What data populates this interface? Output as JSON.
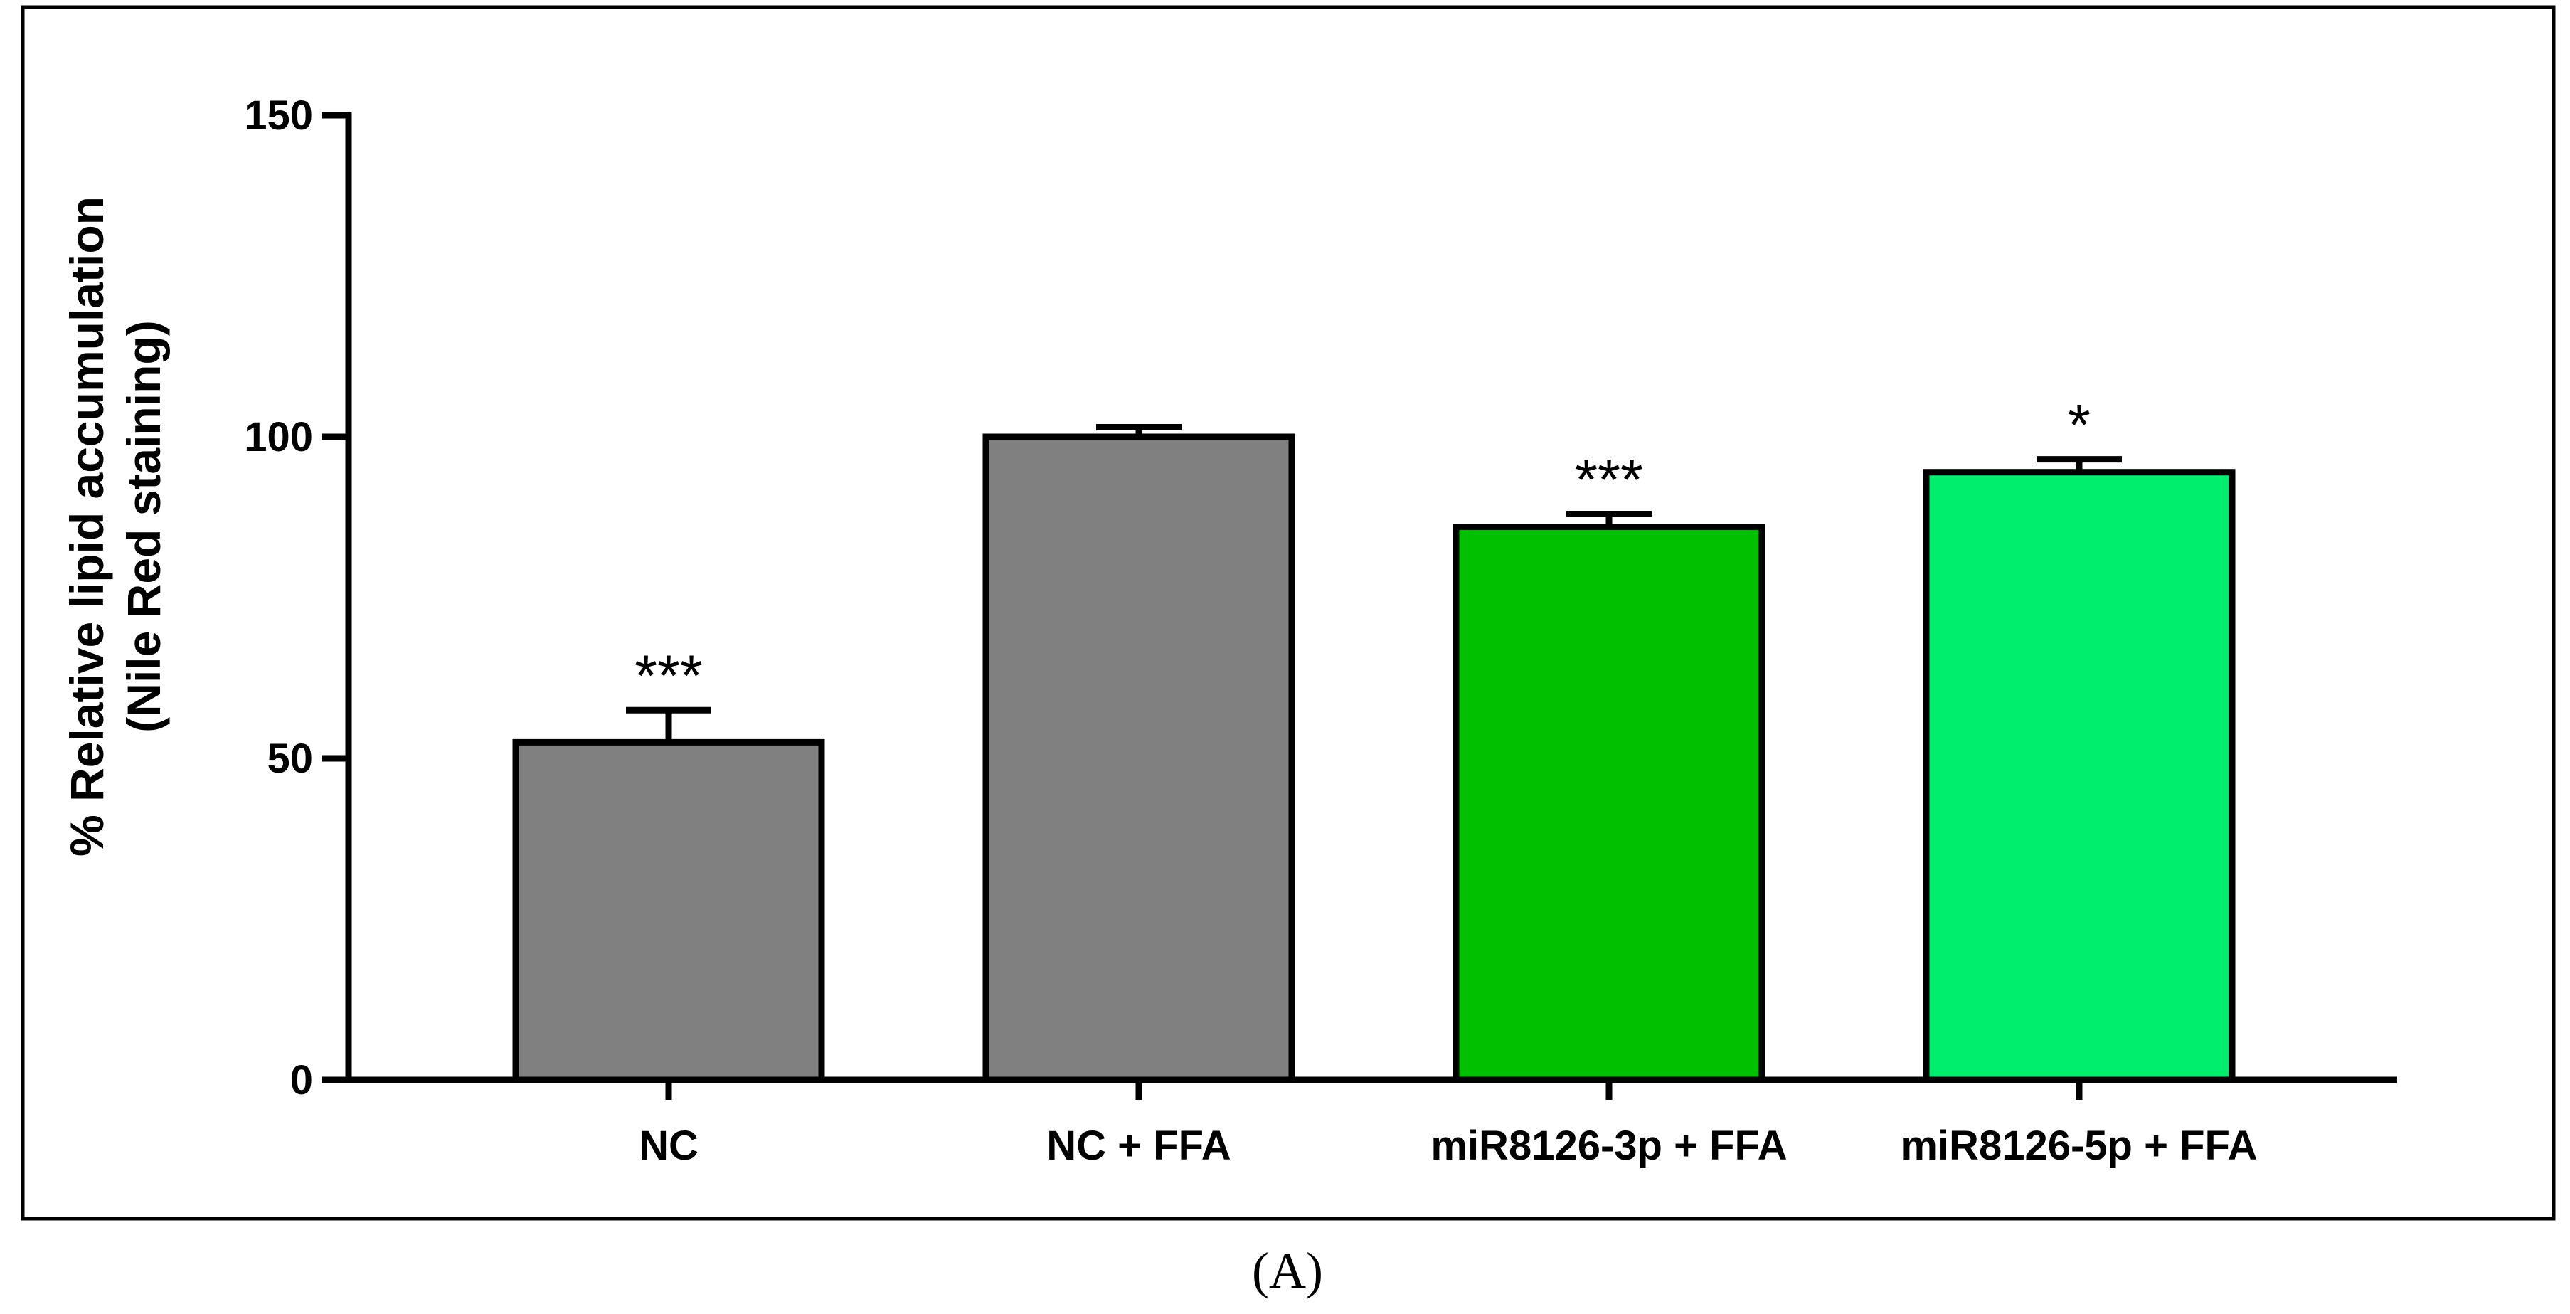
{
  "chart_data": {
    "type": "bar",
    "title": "",
    "xlabel": "",
    "ylabel": [
      "% Relative lipid accumulation",
      "(Nile Red staining)"
    ],
    "ylim": [
      0,
      150
    ],
    "yticks": [
      0,
      50,
      100,
      150
    ],
    "ytick_labels": [
      "0",
      "50",
      "100",
      "150"
    ],
    "categories": [
      "NC",
      "NC + FFA",
      "miR8126-3p + FFA",
      "miR8126-5p + FFA"
    ],
    "values": [
      52.5,
      100,
      86,
      94.5
    ],
    "errors": [
      5,
      1.5,
      2,
      2
    ],
    "significance": [
      "***",
      "",
      "***",
      "*"
    ],
    "bar_colors": [
      "#808080",
      "#808080",
      "#00c000",
      "#00ee6e"
    ],
    "panel_label": "(A)"
  }
}
